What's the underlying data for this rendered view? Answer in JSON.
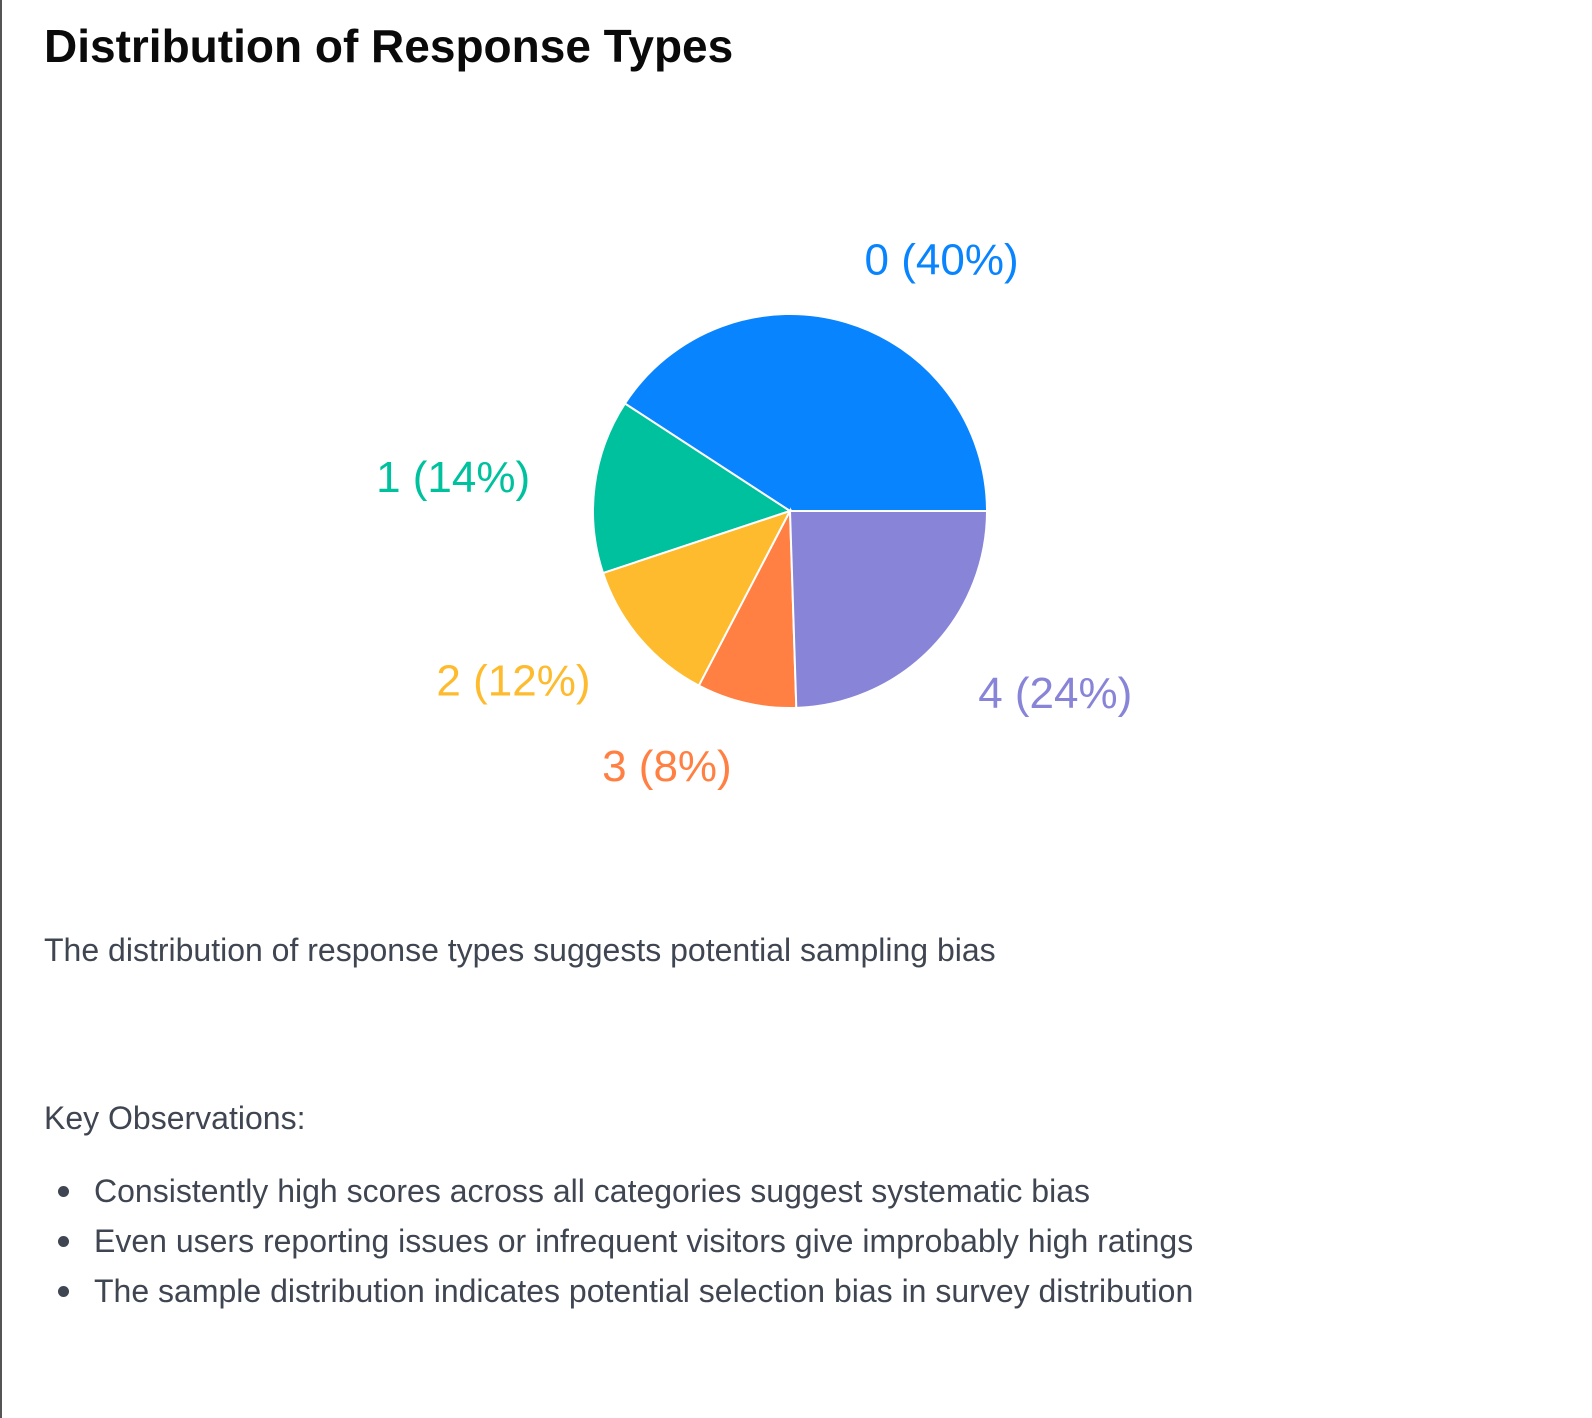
{
  "title": "Distribution of Response Types",
  "chart_data": {
    "type": "pie",
    "categories": [
      "0",
      "1",
      "2",
      "3",
      "4"
    ],
    "values": [
      40,
      14,
      12,
      8,
      24
    ],
    "data_labels": [
      "0 (40%)",
      "1 (14%)",
      "2 (12%)",
      "3 (8%)",
      "4 (24%)"
    ],
    "colors": [
      "#0984FF",
      "#00C19E",
      "#FDBB2D",
      "#FF8042",
      "#8884D8"
    ],
    "start_angle_deg": 0,
    "direction": "counterclockwise",
    "legend": "none"
  },
  "summary": "The distribution of response types suggests potential sampling bias",
  "observations": {
    "heading": "Key Observations:",
    "items": [
      "Consistently high scores across all categories suggest systematic bias",
      "Even users reporting issues or infrequent visitors give improbably high ratings",
      "The sample distribution indicates potential selection bias in survey distribution"
    ]
  }
}
